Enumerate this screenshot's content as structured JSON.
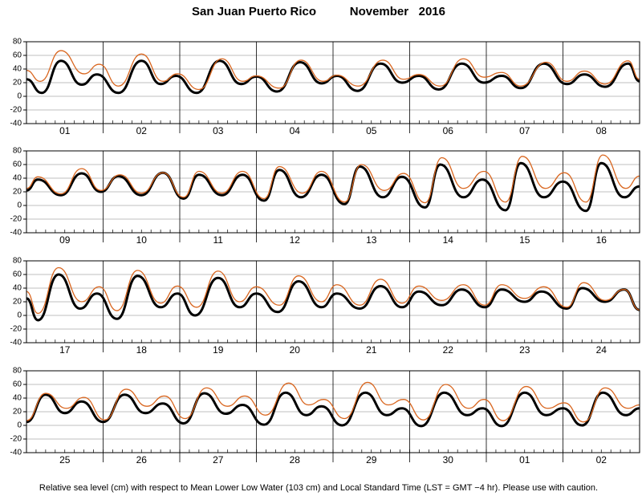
{
  "title": "San Juan Puerto Rico          November   2016",
  "caption": "Relative sea level (cm) with respect to Mean Lower Low Water (103 cm) and Local Standard Time (LST = GMT −4 hr). Please use with caution.",
  "chart_data": [
    {
      "type": "line",
      "xlim": [
        0,
        8
      ],
      "ylim": [
        -40,
        80
      ],
      "yticks": [
        -40,
        -20,
        0,
        20,
        40,
        60,
        80
      ],
      "grid": true,
      "xticks": [
        {
          "value": 0.5,
          "label": "01"
        },
        {
          "value": 1.5,
          "label": "02"
        },
        {
          "value": 2.5,
          "label": "03"
        },
        {
          "value": 3.5,
          "label": "04"
        },
        {
          "value": 4.5,
          "label": "05"
        },
        {
          "value": 5.5,
          "label": "06"
        },
        {
          "value": 6.5,
          "label": "07"
        },
        {
          "value": 7.5,
          "label": "08"
        }
      ],
      "series": [
        {
          "color": "#000000",
          "x": [
            0,
            0.2,
            0.45,
            0.72,
            0.92,
            1.2,
            1.5,
            1.75,
            1.95,
            2.22,
            2.52,
            2.8,
            3.0,
            3.27,
            3.57,
            3.85,
            4.05,
            4.32,
            4.62,
            4.9,
            5.12,
            5.38,
            5.68,
            5.97,
            6.2,
            6.45,
            6.75,
            7.05,
            7.28,
            7.55,
            7.85,
            8.0
          ],
          "values": [
            25,
            5,
            52,
            17,
            32,
            5,
            52,
            18,
            30,
            5,
            52,
            18,
            29,
            7,
            50,
            19,
            30,
            8,
            48,
            20,
            30,
            10,
            48,
            20,
            30,
            12,
            48,
            18,
            32,
            14,
            48,
            22
          ]
        },
        {
          "color": "#d9661f",
          "x": [
            0,
            0.18,
            0.45,
            0.75,
            0.95,
            1.2,
            1.5,
            1.78,
            1.97,
            2.25,
            2.55,
            2.82,
            3.0,
            3.3,
            3.58,
            3.87,
            4.05,
            4.33,
            4.65,
            4.92,
            5.12,
            5.4,
            5.7,
            5.97,
            6.2,
            6.45,
            6.78,
            7.05,
            7.28,
            7.55,
            7.85,
            8.0
          ],
          "values": [
            38,
            22,
            67,
            33,
            47,
            15,
            62,
            22,
            33,
            10,
            55,
            22,
            30,
            12,
            53,
            22,
            31,
            15,
            53,
            25,
            32,
            15,
            55,
            28,
            35,
            15,
            50,
            22,
            37,
            18,
            52,
            25
          ]
        }
      ]
    },
    {
      "type": "line",
      "xlim": [
        0,
        8
      ],
      "ylim": [
        -40,
        80
      ],
      "yticks": [
        -40,
        -20,
        0,
        20,
        40,
        60,
        80
      ],
      "grid": true,
      "xticks": [
        {
          "value": 0.5,
          "label": "09"
        },
        {
          "value": 1.5,
          "label": "10"
        },
        {
          "value": 2.5,
          "label": "11"
        },
        {
          "value": 3.5,
          "label": "12"
        },
        {
          "value": 4.5,
          "label": "13"
        },
        {
          "value": 5.5,
          "label": "14"
        },
        {
          "value": 6.5,
          "label": "15"
        },
        {
          "value": 7.5,
          "label": "16"
        }
      ],
      "series": [
        {
          "color": "#000000",
          "x": [
            0,
            0.15,
            0.45,
            0.72,
            0.97,
            1.2,
            1.5,
            1.78,
            2.05,
            2.25,
            2.55,
            2.82,
            3.1,
            3.3,
            3.58,
            3.85,
            4.15,
            4.35,
            4.65,
            4.9,
            5.2,
            5.4,
            5.7,
            5.95,
            6.25,
            6.45,
            6.75,
            7.0,
            7.3,
            7.5,
            7.8,
            8.0
          ],
          "values": [
            22,
            38,
            15,
            47,
            20,
            43,
            15,
            48,
            10,
            45,
            15,
            45,
            7,
            52,
            12,
            45,
            2,
            57,
            12,
            42,
            -3,
            60,
            12,
            38,
            -7,
            62,
            12,
            35,
            -8,
            62,
            12,
            28
          ]
        },
        {
          "color": "#d9661f",
          "x": [
            0,
            0.15,
            0.45,
            0.72,
            0.97,
            1.22,
            1.5,
            1.78,
            2.05,
            2.25,
            2.55,
            2.82,
            3.1,
            3.3,
            3.6,
            3.85,
            4.15,
            4.37,
            4.67,
            4.92,
            5.2,
            5.42,
            5.7,
            5.97,
            6.25,
            6.47,
            6.77,
            7.02,
            7.3,
            7.52,
            7.82,
            8.0
          ],
          "values": [
            25,
            42,
            17,
            54,
            22,
            45,
            18,
            48,
            12,
            50,
            18,
            50,
            10,
            57,
            18,
            50,
            5,
            60,
            22,
            47,
            4,
            70,
            25,
            50,
            5,
            72,
            25,
            48,
            5,
            74,
            25,
            43
          ]
        }
      ]
    },
    {
      "type": "line",
      "xlim": [
        0,
        8
      ],
      "ylim": [
        -40,
        80
      ],
      "yticks": [
        -40,
        -20,
        0,
        20,
        40,
        60,
        80
      ],
      "grid": true,
      "xticks": [
        {
          "value": 0.5,
          "label": "17"
        },
        {
          "value": 1.5,
          "label": "18"
        },
        {
          "value": 2.5,
          "label": "19"
        },
        {
          "value": 3.5,
          "label": "20"
        },
        {
          "value": 4.5,
          "label": "21"
        },
        {
          "value": 5.5,
          "label": "22"
        },
        {
          "value": 6.5,
          "label": "23"
        },
        {
          "value": 7.5,
          "label": "24"
        }
      ],
      "series": [
        {
          "color": "#000000",
          "x": [
            0,
            0.15,
            0.42,
            0.7,
            0.92,
            1.18,
            1.45,
            1.75,
            1.97,
            2.2,
            2.5,
            2.78,
            3.0,
            3.28,
            3.55,
            3.85,
            4.05,
            4.35,
            4.62,
            4.9,
            5.12,
            5.42,
            5.68,
            5.98,
            6.2,
            6.5,
            6.72,
            7.05,
            7.25,
            7.55,
            7.8,
            8.0
          ],
          "values": [
            25,
            -7,
            60,
            10,
            32,
            -5,
            58,
            12,
            32,
            0,
            55,
            12,
            32,
            5,
            50,
            12,
            32,
            10,
            43,
            12,
            35,
            15,
            38,
            12,
            38,
            20,
            35,
            10,
            40,
            20,
            38,
            8
          ]
        },
        {
          "color": "#d9661f",
          "x": [
            0,
            0.15,
            0.42,
            0.72,
            0.95,
            1.18,
            1.45,
            1.75,
            1.97,
            2.22,
            2.5,
            2.78,
            3.0,
            3.3,
            3.55,
            3.85,
            4.05,
            4.35,
            4.62,
            4.9,
            5.12,
            5.42,
            5.7,
            5.98,
            6.2,
            6.5,
            6.75,
            7.05,
            7.27,
            7.55,
            7.8,
            8.0
          ],
          "values": [
            35,
            3,
            70,
            20,
            42,
            7,
            66,
            18,
            43,
            12,
            65,
            20,
            42,
            15,
            58,
            20,
            45,
            15,
            53,
            18,
            43,
            22,
            45,
            15,
            45,
            25,
            42,
            12,
            48,
            22,
            38,
            8
          ]
        }
      ]
    },
    {
      "type": "line",
      "xlim": [
        0,
        8
      ],
      "ylim": [
        -40,
        80
      ],
      "yticks": [
        -40,
        -20,
        0,
        20,
        40,
        60,
        80
      ],
      "grid": true,
      "xticks": [
        {
          "value": 0.5,
          "label": "25"
        },
        {
          "value": 1.5,
          "label": "26"
        },
        {
          "value": 2.5,
          "label": "27"
        },
        {
          "value": 3.5,
          "label": "28"
        },
        {
          "value": 4.5,
          "label": "29"
        },
        {
          "value": 5.5,
          "label": "30"
        },
        {
          "value": 6.5,
          "label": "01"
        },
        {
          "value": 7.5,
          "label": "02"
        }
      ],
      "series": [
        {
          "color": "#000000",
          "x": [
            0,
            0.25,
            0.5,
            0.72,
            1.0,
            1.28,
            1.55,
            1.78,
            2.05,
            2.32,
            2.6,
            2.82,
            3.1,
            3.38,
            3.65,
            3.85,
            4.12,
            4.42,
            4.7,
            4.9,
            5.15,
            5.45,
            5.75,
            5.95,
            6.2,
            6.5,
            6.78,
            7.0,
            7.25,
            7.52,
            7.82,
            8.0
          ],
          "values": [
            5,
            45,
            18,
            35,
            5,
            45,
            18,
            32,
            3,
            47,
            17,
            30,
            1,
            48,
            15,
            28,
            0,
            48,
            15,
            25,
            -1,
            48,
            15,
            25,
            -1,
            48,
            15,
            25,
            0,
            48,
            15,
            25
          ]
        },
        {
          "color": "#d9661f",
          "x": [
            0,
            0.25,
            0.52,
            0.75,
            1.02,
            1.3,
            1.57,
            1.8,
            2.07,
            2.35,
            2.62,
            2.85,
            3.12,
            3.42,
            3.68,
            3.88,
            4.15,
            4.45,
            4.72,
            4.92,
            5.18,
            5.47,
            5.77,
            5.97,
            6.22,
            6.52,
            6.8,
            7.02,
            7.27,
            7.55,
            7.85,
            8.0
          ],
          "values": [
            7,
            47,
            25,
            41,
            8,
            53,
            28,
            43,
            10,
            55,
            28,
            43,
            15,
            62,
            30,
            38,
            10,
            63,
            30,
            38,
            8,
            60,
            25,
            38,
            7,
            57,
            25,
            33,
            5,
            55,
            25,
            30
          ]
        }
      ]
    }
  ]
}
